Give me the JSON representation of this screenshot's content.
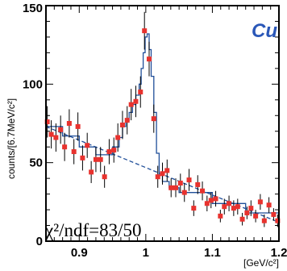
{
  "chart_data": {
    "type": "scatter",
    "title": "",
    "xlabel": "[GeV/c²]",
    "ylabel": "counts/[6.7MeV/c²]",
    "xlim": [
      0.85,
      1.2
    ],
    "ylim": [
      0,
      150
    ],
    "x_ticks": [
      0.9,
      1.0,
      1.1,
      1.2
    ],
    "x_tick_labels": [
      "0.9",
      "1",
      "1.1",
      "1.2"
    ],
    "y_ticks": [
      0,
      50,
      100,
      150
    ],
    "y_tick_labels": [
      "0",
      "50",
      "100",
      "150"
    ],
    "grid": false,
    "target_label": "Cu",
    "fit_quality_text": "χ²/ndf=83/50",
    "colors": {
      "data": "#e8322e",
      "fit": "#1f4e99",
      "label": "#2a57b8",
      "error_bar": "#000000"
    },
    "series": [
      {
        "kind": "data-points",
        "x": [
          0.852,
          0.858,
          0.865,
          0.872,
          0.878,
          0.885,
          0.892,
          0.898,
          0.905,
          0.912,
          0.918,
          0.925,
          0.932,
          0.938,
          0.945,
          0.952,
          0.958,
          0.965,
          0.972,
          0.978,
          0.985,
          0.992,
          0.998,
          1.005,
          1.012,
          1.018,
          1.025,
          1.032,
          1.038,
          1.045,
          1.052,
          1.058,
          1.065,
          1.072,
          1.078,
          1.085,
          1.092,
          1.098,
          1.105,
          1.112,
          1.118,
          1.125,
          1.132,
          1.138,
          1.145,
          1.152,
          1.158,
          1.165,
          1.172,
          1.178,
          1.185,
          1.192,
          1.198
        ],
        "y": [
          76,
          68,
          66,
          71,
          60,
          75,
          57,
          73,
          53,
          61,
          44,
          52,
          52,
          41,
          57,
          58,
          66,
          74,
          77,
          87,
          89,
          95,
          134,
          116,
          78,
          41,
          43,
          45,
          34,
          34,
          37,
          31,
          39,
          21,
          36,
          32,
          24,
          26,
          27,
          16,
          22,
          24,
          21,
          22,
          14,
          18,
          21,
          16,
          25,
          13,
          23,
          17,
          13
        ],
        "yerr": [
          10,
          9,
          9,
          9,
          9,
          9,
          8,
          9,
          8,
          8,
          7,
          8,
          8,
          7,
          8,
          8,
          9,
          9,
          9,
          10,
          10,
          10,
          12,
          11,
          9,
          7,
          7,
          7,
          6,
          6,
          6,
          6,
          7,
          5,
          6,
          6,
          5,
          5,
          5,
          4,
          5,
          5,
          5,
          5,
          4,
          4,
          5,
          4,
          5,
          4,
          5,
          4,
          4
        ]
      },
      {
        "kind": "fit-histogram",
        "x": [
          0.85,
          0.875,
          0.9,
          0.925,
          0.95,
          0.96,
          0.965,
          0.97,
          0.975,
          0.98,
          0.985,
          0.99,
          0.993,
          0.996,
          0.999,
          1.002,
          1.005,
          1.008,
          1.012,
          1.016,
          1.02,
          1.025,
          1.035,
          1.05,
          1.1,
          1.15,
          1.2
        ],
        "y": [
          73,
          67,
          60,
          55,
          60,
          66,
          73,
          77,
          82,
          87,
          93,
          100,
          110,
          120,
          130,
          132,
          122,
          105,
          82,
          56,
          42,
          38,
          34,
          31,
          24,
          18,
          12
        ]
      },
      {
        "kind": "background",
        "x": [
          0.85,
          1.2
        ],
        "y": [
          73,
          12
        ]
      }
    ]
  }
}
